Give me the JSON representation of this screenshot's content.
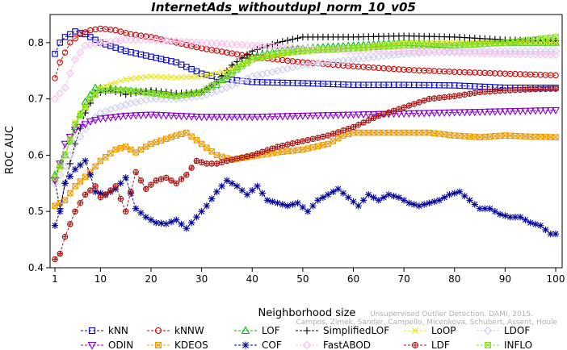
{
  "chart_data": {
    "type": "line",
    "title": "InternetAds_withoutdupl_norm_10_v05",
    "xlabel": "Neighborhood size",
    "ylabel": "ROC AUC",
    "xlim": [
      1,
      100
    ],
    "ylim": [
      0.4,
      0.85
    ],
    "xticks": [
      1,
      10,
      20,
      30,
      40,
      50,
      60,
      70,
      80,
      90,
      100
    ],
    "yticks": [
      0.4,
      0.5,
      0.6,
      0.7,
      0.8
    ],
    "grid": false,
    "legend_position": "bottom",
    "watermark_lines": [
      "Unsupervised Outlier Detection. DAMI, 2015.",
      "Campos, Zimek, Sander, Campello, Micenkova, Schubert, Assent, Houle"
    ],
    "series": [
      {
        "name": "kNN",
        "color": "#0000cc",
        "marker": "square",
        "linestyle": "dashed",
        "points": [
          [
            1,
            0.78
          ],
          [
            2,
            0.8
          ],
          [
            3,
            0.81
          ],
          [
            5,
            0.82
          ],
          [
            7,
            0.815
          ],
          [
            10,
            0.8
          ],
          [
            15,
            0.785
          ],
          [
            20,
            0.775
          ],
          [
            25,
            0.765
          ],
          [
            30,
            0.745
          ],
          [
            35,
            0.735
          ],
          [
            40,
            0.73
          ],
          [
            50,
            0.728
          ],
          [
            60,
            0.725
          ],
          [
            70,
            0.725
          ],
          [
            80,
            0.724
          ],
          [
            90,
            0.72
          ],
          [
            100,
            0.72
          ]
        ]
      },
      {
        "name": "kNNW",
        "color": "#cc0000",
        "marker": "circle",
        "linestyle": "dashed",
        "points": [
          [
            1,
            0.737
          ],
          [
            2,
            0.765
          ],
          [
            4,
            0.8
          ],
          [
            6,
            0.815
          ],
          [
            8,
            0.822
          ],
          [
            10,
            0.825
          ],
          [
            13,
            0.822
          ],
          [
            16,
            0.815
          ],
          [
            20,
            0.81
          ],
          [
            25,
            0.8
          ],
          [
            30,
            0.79
          ],
          [
            40,
            0.775
          ],
          [
            50,
            0.765
          ],
          [
            60,
            0.758
          ],
          [
            70,
            0.752
          ],
          [
            80,
            0.748
          ],
          [
            90,
            0.745
          ],
          [
            100,
            0.742
          ]
        ]
      },
      {
        "name": "LOF",
        "color": "#00bb00",
        "marker": "triangle",
        "linestyle": "dashed",
        "points": [
          [
            1,
            0.565
          ],
          [
            3,
            0.6
          ],
          [
            5,
            0.65
          ],
          [
            7,
            0.695
          ],
          [
            9,
            0.72
          ],
          [
            12,
            0.718
          ],
          [
            15,
            0.715
          ],
          [
            20,
            0.712
          ],
          [
            25,
            0.705
          ],
          [
            30,
            0.712
          ],
          [
            33,
            0.725
          ],
          [
            36,
            0.75
          ],
          [
            40,
            0.775
          ],
          [
            45,
            0.785
          ],
          [
            50,
            0.79
          ],
          [
            60,
            0.795
          ],
          [
            70,
            0.8
          ],
          [
            80,
            0.795
          ],
          [
            90,
            0.8
          ],
          [
            100,
            0.8
          ]
        ]
      },
      {
        "name": "SimplifiedLOF",
        "color": "#000000",
        "marker": "plus",
        "linestyle": "dashed",
        "points": [
          [
            1,
            0.555
          ],
          [
            2,
            0.505
          ],
          [
            3,
            0.55
          ],
          [
            5,
            0.62
          ],
          [
            7,
            0.675
          ],
          [
            9,
            0.71
          ],
          [
            12,
            0.715
          ],
          [
            15,
            0.708
          ],
          [
            20,
            0.715
          ],
          [
            25,
            0.71
          ],
          [
            30,
            0.712
          ],
          [
            33,
            0.73
          ],
          [
            36,
            0.76
          ],
          [
            40,
            0.785
          ],
          [
            45,
            0.8
          ],
          [
            50,
            0.81
          ],
          [
            60,
            0.81
          ],
          [
            70,
            0.812
          ],
          [
            80,
            0.81
          ],
          [
            90,
            0.805
          ],
          [
            100,
            0.803
          ]
        ]
      },
      {
        "name": "LoOP",
        "color": "#e6e600",
        "marker": "x",
        "linestyle": "dashed",
        "points": [
          [
            1,
            0.555
          ],
          [
            3,
            0.6
          ],
          [
            5,
            0.66
          ],
          [
            8,
            0.7
          ],
          [
            10,
            0.72
          ],
          [
            15,
            0.735
          ],
          [
            20,
            0.74
          ],
          [
            25,
            0.738
          ],
          [
            30,
            0.74
          ],
          [
            35,
            0.75
          ],
          [
            40,
            0.77
          ],
          [
            50,
            0.785
          ],
          [
            60,
            0.79
          ],
          [
            70,
            0.8
          ],
          [
            80,
            0.8
          ],
          [
            90,
            0.8
          ],
          [
            100,
            0.8
          ]
        ]
      },
      {
        "name": "LDOF",
        "color": "#ccccee",
        "marker": "diamond",
        "linestyle": "dashed",
        "points": [
          [
            1,
            0.55
          ],
          [
            3,
            0.58
          ],
          [
            5,
            0.62
          ],
          [
            8,
            0.66
          ],
          [
            10,
            0.675
          ],
          [
            15,
            0.69
          ],
          [
            20,
            0.7
          ],
          [
            25,
            0.7
          ],
          [
            30,
            0.705
          ],
          [
            35,
            0.72
          ],
          [
            40,
            0.74
          ],
          [
            50,
            0.76
          ],
          [
            60,
            0.77
          ],
          [
            70,
            0.78
          ],
          [
            80,
            0.785
          ],
          [
            90,
            0.785
          ],
          [
            100,
            0.785
          ]
        ]
      },
      {
        "name": "ODIN",
        "color": "#8800cc",
        "marker": "triangle-down",
        "linestyle": "dashed",
        "points": [
          [
            1,
            0.555
          ],
          [
            2,
            0.585
          ],
          [
            3,
            0.62
          ],
          [
            5,
            0.645
          ],
          [
            8,
            0.66
          ],
          [
            10,
            0.665
          ],
          [
            15,
            0.67
          ],
          [
            20,
            0.672
          ],
          [
            30,
            0.668
          ],
          [
            40,
            0.668
          ],
          [
            50,
            0.67
          ],
          [
            60,
            0.672
          ],
          [
            70,
            0.674
          ],
          [
            80,
            0.676
          ],
          [
            90,
            0.678
          ],
          [
            100,
            0.68
          ]
        ]
      },
      {
        "name": "KDEOS",
        "color": "#ee9900",
        "marker": "square-x",
        "linestyle": "dashed",
        "points": [
          [
            1,
            0.51
          ],
          [
            3,
            0.52
          ],
          [
            5,
            0.545
          ],
          [
            8,
            0.57
          ],
          [
            10,
            0.59
          ],
          [
            13,
            0.61
          ],
          [
            15,
            0.615
          ],
          [
            17,
            0.605
          ],
          [
            20,
            0.62
          ],
          [
            25,
            0.635
          ],
          [
            27,
            0.64
          ],
          [
            30,
            0.62
          ],
          [
            33,
            0.6
          ],
          [
            36,
            0.592
          ],
          [
            40,
            0.598
          ],
          [
            45,
            0.605
          ],
          [
            50,
            0.61
          ],
          [
            55,
            0.62
          ],
          [
            58,
            0.635
          ],
          [
            60,
            0.64
          ],
          [
            65,
            0.64
          ],
          [
            70,
            0.64
          ],
          [
            75,
            0.64
          ],
          [
            80,
            0.635
          ],
          [
            85,
            0.632
          ],
          [
            90,
            0.635
          ],
          [
            95,
            0.633
          ],
          [
            100,
            0.632
          ]
        ]
      },
      {
        "name": "COF",
        "color": "#000099",
        "marker": "asterisk",
        "linestyle": "dashed",
        "points": [
          [
            1,
            0.475
          ],
          [
            2,
            0.5
          ],
          [
            3,
            0.55
          ],
          [
            5,
            0.575
          ],
          [
            7,
            0.59
          ],
          [
            8,
            0.565
          ],
          [
            9,
            0.535
          ],
          [
            11,
            0.53
          ],
          [
            13,
            0.54
          ],
          [
            15,
            0.56
          ],
          [
            17,
            0.505
          ],
          [
            19,
            0.49
          ],
          [
            21,
            0.48
          ],
          [
            23,
            0.478
          ],
          [
            25,
            0.485
          ],
          [
            27,
            0.47
          ],
          [
            29,
            0.49
          ],
          [
            31,
            0.51
          ],
          [
            33,
            0.535
          ],
          [
            35,
            0.555
          ],
          [
            37,
            0.545
          ],
          [
            39,
            0.53
          ],
          [
            41,
            0.545
          ],
          [
            43,
            0.52
          ],
          [
            45,
            0.515
          ],
          [
            47,
            0.51
          ],
          [
            49,
            0.515
          ],
          [
            51,
            0.5
          ],
          [
            53,
            0.52
          ],
          [
            55,
            0.53
          ],
          [
            57,
            0.54
          ],
          [
            59,
            0.525
          ],
          [
            61,
            0.51
          ],
          [
            63,
            0.53
          ],
          [
            65,
            0.52
          ],
          [
            67,
            0.53
          ],
          [
            69,
            0.525
          ],
          [
            71,
            0.515
          ],
          [
            73,
            0.51
          ],
          [
            75,
            0.515
          ],
          [
            77,
            0.52
          ],
          [
            79,
            0.53
          ],
          [
            81,
            0.535
          ],
          [
            83,
            0.52
          ],
          [
            85,
            0.505
          ],
          [
            87,
            0.505
          ],
          [
            89,
            0.495
          ],
          [
            91,
            0.49
          ],
          [
            93,
            0.49
          ],
          [
            95,
            0.48
          ],
          [
            97,
            0.475
          ],
          [
            99,
            0.46
          ],
          [
            100,
            0.46
          ]
        ]
      },
      {
        "name": "FastABOD",
        "color": "#ffbbee",
        "marker": "diamond",
        "linestyle": "dashed",
        "points": [
          [
            1,
            0.7
          ],
          [
            3,
            0.72
          ],
          [
            5,
            0.77
          ],
          [
            7,
            0.795
          ],
          [
            10,
            0.8
          ],
          [
            15,
            0.805
          ],
          [
            20,
            0.805
          ],
          [
            30,
            0.8
          ],
          [
            40,
            0.795
          ],
          [
            50,
            0.79
          ],
          [
            60,
            0.785
          ],
          [
            70,
            0.785
          ],
          [
            80,
            0.782
          ],
          [
            90,
            0.78
          ],
          [
            100,
            0.778
          ]
        ]
      },
      {
        "name": "LDF",
        "color": "#aa1111",
        "marker": "circle-plus",
        "linestyle": "dashed",
        "points": [
          [
            1,
            0.415
          ],
          [
            2,
            0.425
          ],
          [
            3,
            0.455
          ],
          [
            5,
            0.5
          ],
          [
            7,
            0.53
          ],
          [
            9,
            0.545
          ],
          [
            10,
            0.525
          ],
          [
            11,
            0.53
          ],
          [
            13,
            0.545
          ],
          [
            15,
            0.5
          ],
          [
            17,
            0.57
          ],
          [
            19,
            0.54
          ],
          [
            21,
            0.555
          ],
          [
            23,
            0.56
          ],
          [
            25,
            0.55
          ],
          [
            27,
            0.565
          ],
          [
            29,
            0.59
          ],
          [
            31,
            0.585
          ],
          [
            33,
            0.585
          ],
          [
            35,
            0.59
          ],
          [
            40,
            0.6
          ],
          [
            45,
            0.615
          ],
          [
            50,
            0.625
          ],
          [
            55,
            0.635
          ],
          [
            60,
            0.65
          ],
          [
            65,
            0.67
          ],
          [
            70,
            0.685
          ],
          [
            75,
            0.7
          ],
          [
            80,
            0.705
          ],
          [
            85,
            0.712
          ],
          [
            90,
            0.715
          ],
          [
            95,
            0.717
          ],
          [
            100,
            0.718
          ]
        ]
      },
      {
        "name": "INFLO",
        "color": "#88dd22",
        "marker": "square-x",
        "linestyle": "dashed",
        "points": [
          [
            1,
            0.56
          ],
          [
            3,
            0.6
          ],
          [
            5,
            0.655
          ],
          [
            8,
            0.7
          ],
          [
            10,
            0.715
          ],
          [
            15,
            0.715
          ],
          [
            20,
            0.71
          ],
          [
            25,
            0.705
          ],
          [
            30,
            0.712
          ],
          [
            35,
            0.74
          ],
          [
            40,
            0.77
          ],
          [
            45,
            0.78
          ],
          [
            50,
            0.785
          ],
          [
            60,
            0.79
          ],
          [
            70,
            0.795
          ],
          [
            80,
            0.795
          ],
          [
            90,
            0.8
          ],
          [
            95,
            0.805
          ],
          [
            100,
            0.81
          ]
        ]
      }
    ]
  }
}
